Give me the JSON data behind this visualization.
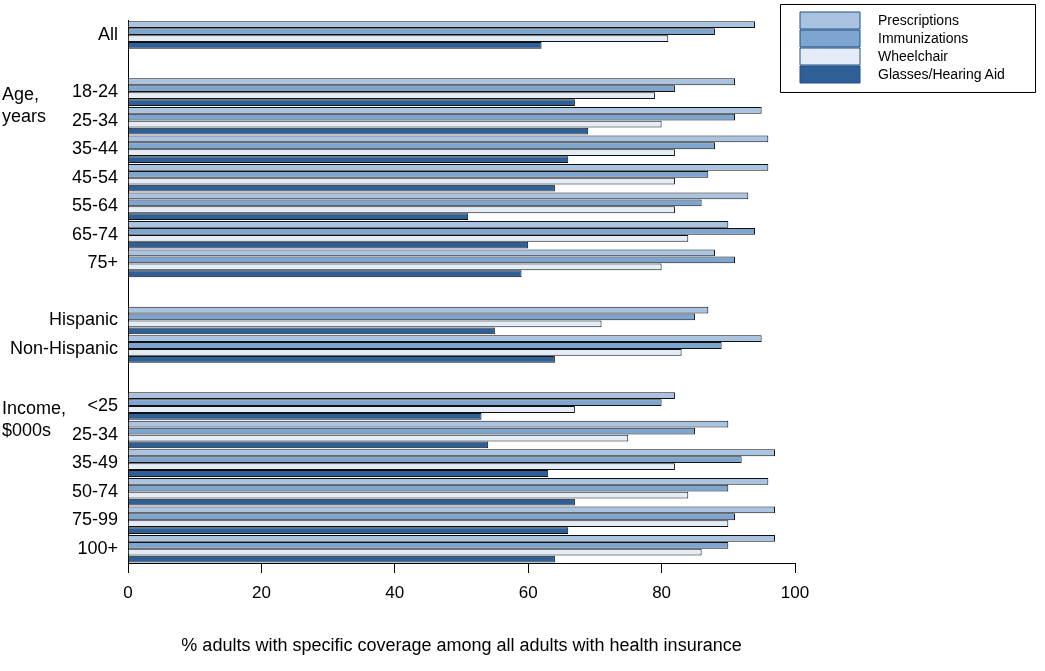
{
  "chart_data": {
    "type": "bar",
    "orientation": "horizontal",
    "categories": [
      "All",
      null,
      "18-24",
      "25-34",
      "35-44",
      "45-54",
      "55-64",
      "65-74",
      "75+",
      null,
      "Hispanic",
      "Non-Hispanic",
      null,
      "<25",
      "25-34",
      "35-49",
      "50-74",
      "75-99",
      "100+"
    ],
    "series": [
      {
        "name": "Prescriptions",
        "color": "#a9c3e0",
        "values": [
          94,
          null,
          91,
          95,
          96,
          96,
          93,
          90,
          88,
          null,
          87,
          95,
          null,
          82,
          90,
          97,
          96,
          97,
          97
        ]
      },
      {
        "name": "Immunizations",
        "color": "#7ea5cf",
        "values": [
          88,
          null,
          82,
          91,
          88,
          87,
          86,
          94,
          91,
          null,
          85,
          89,
          null,
          80,
          85,
          92,
          90,
          91,
          90
        ]
      },
      {
        "name": "Wheelchair",
        "color": "#e4edf7",
        "values": [
          81,
          null,
          79,
          80,
          82,
          82,
          82,
          84,
          80,
          null,
          71,
          83,
          null,
          67,
          75,
          82,
          84,
          90,
          86
        ]
      },
      {
        "name": "Glasses/Hearing Aid",
        "color": "#2e5f96",
        "values": [
          62,
          null,
          67,
          69,
          66,
          64,
          51,
          60,
          59,
          null,
          55,
          64,
          null,
          53,
          54,
          63,
          67,
          66,
          64
        ]
      }
    ],
    "xlim": [
      0,
      100
    ],
    "xticks": [
      0,
      20,
      40,
      60,
      80,
      100
    ],
    "xlabel": "% adults with specific coverage among all adults with health insurance",
    "annotations": [
      "Age, years",
      "Income, $000s"
    ],
    "legend": "top right",
    "grid": false
  }
}
